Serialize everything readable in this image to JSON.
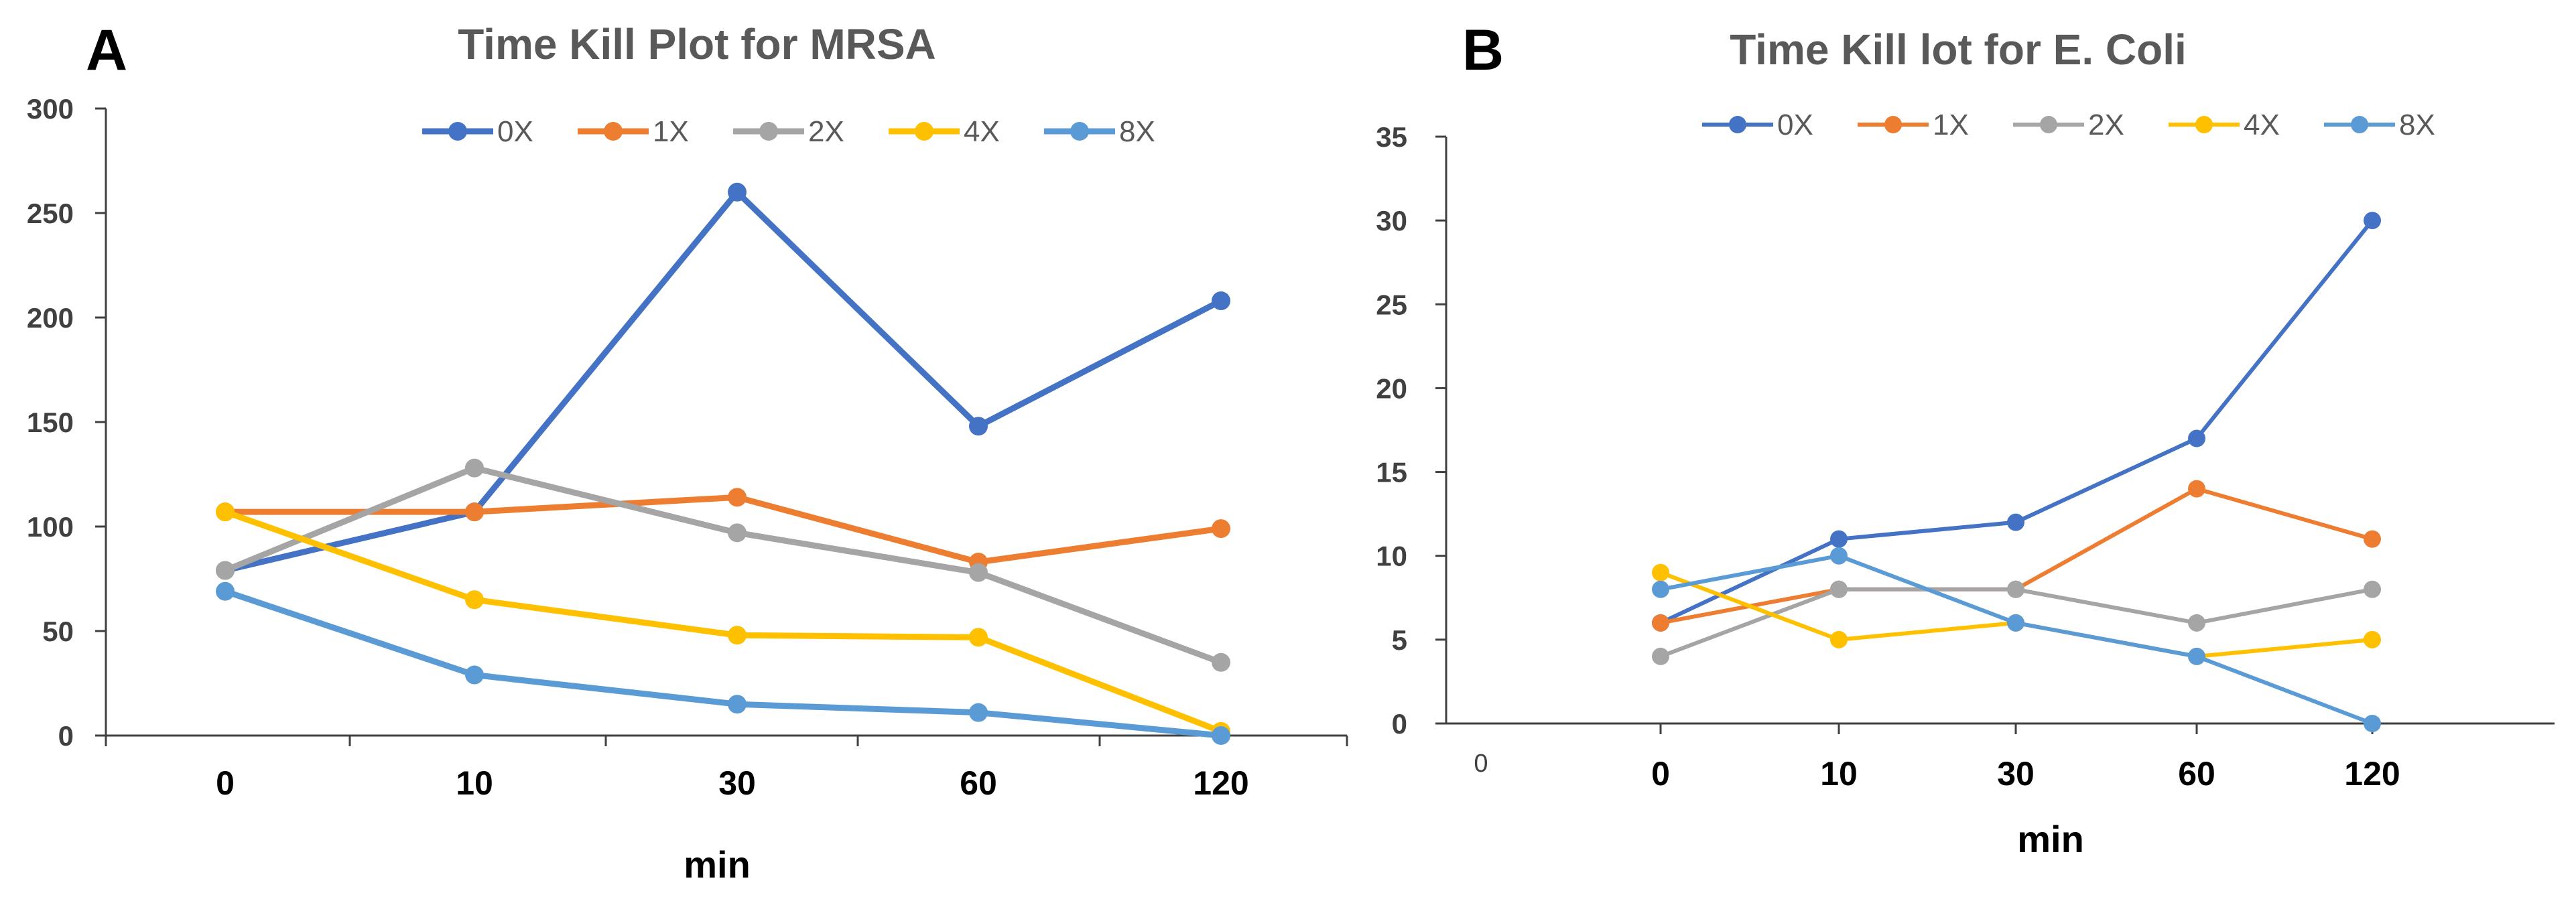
{
  "colors": {
    "0X": "#4472C4",
    "1X": "#ED7D31",
    "2X": "#A5A5A5",
    "4X": "#FFC000",
    "8X": "#5B9BD5",
    "axis": "#404040",
    "title": "#595959"
  },
  "chart_data": [
    {
      "panel": "A",
      "type": "line",
      "title": "Time Kill Plot for MRSA",
      "xlabel": "min",
      "ylabel": "",
      "categories": [
        "0",
        "10",
        "30",
        "60",
        "120"
      ],
      "ylim": [
        0,
        300
      ],
      "yticks": [
        0,
        50,
        100,
        150,
        200,
        250,
        300
      ],
      "legend_position": "top",
      "grid": false,
      "series": [
        {
          "name": "0X",
          "values": [
            79,
            107,
            260,
            148,
            208
          ]
        },
        {
          "name": "1X",
          "values": [
            107,
            107,
            114,
            83,
            99
          ]
        },
        {
          "name": "2X",
          "values": [
            79,
            128,
            97,
            78,
            35
          ]
        },
        {
          "name": "4X",
          "values": [
            107,
            65,
            48,
            47,
            2
          ]
        },
        {
          "name": "8X",
          "values": [
            69,
            29,
            15,
            11,
            0
          ]
        }
      ]
    },
    {
      "panel": "B",
      "type": "line",
      "title": "Time Kill lot for E. Coli",
      "xlabel": "min",
      "ylabel": "",
      "categories": [
        "0",
        "10",
        "30",
        "60",
        "120"
      ],
      "extra_label": "0",
      "ylim": [
        0,
        35
      ],
      "yticks": [
        0,
        5,
        10,
        15,
        20,
        25,
        30,
        35
      ],
      "legend_position": "top",
      "grid": false,
      "series": [
        {
          "name": "0X",
          "values": [
            6,
            11,
            12,
            17,
            30
          ]
        },
        {
          "name": "1X",
          "values": [
            6,
            8,
            8,
            14,
            11
          ]
        },
        {
          "name": "2X",
          "values": [
            4,
            8,
            8,
            6,
            8
          ]
        },
        {
          "name": "4X",
          "values": [
            9,
            5,
            6,
            4,
            5
          ]
        },
        {
          "name": "8X",
          "values": [
            8,
            10,
            6,
            4,
            0
          ]
        }
      ]
    }
  ]
}
